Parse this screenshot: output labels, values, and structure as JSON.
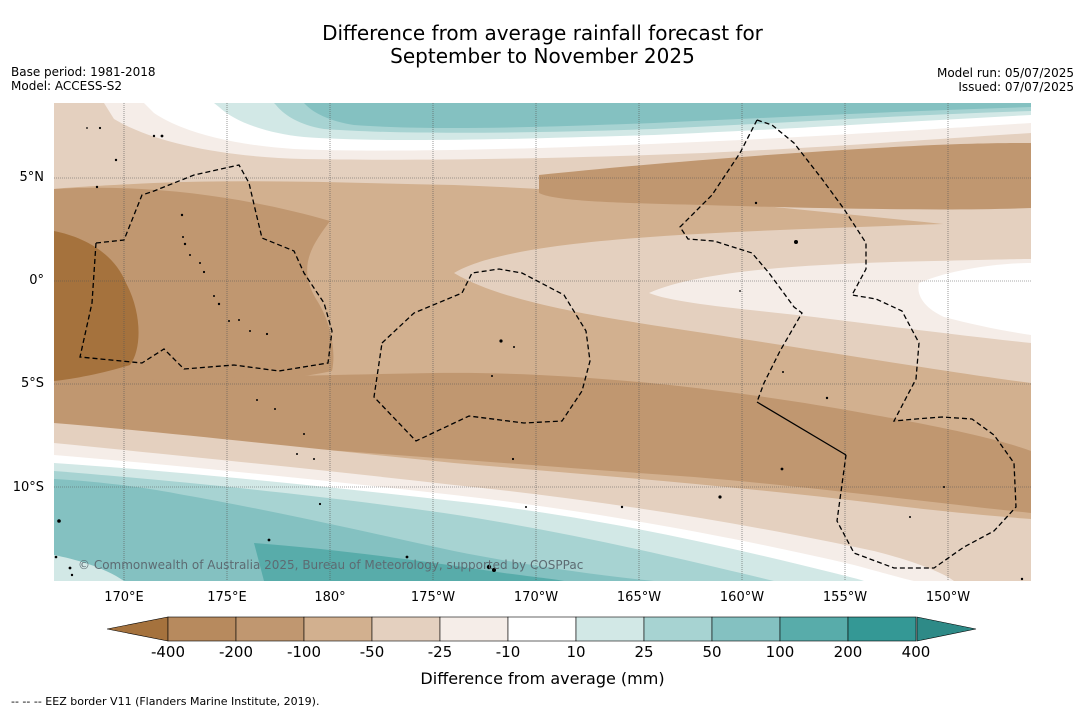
{
  "title_line1": "Difference from average rainfall forecast for",
  "title_line2": "September to November 2025",
  "base_period": "Base period: 1981-2018",
  "model": "Model: ACCESS-S2",
  "model_run": "Model run: 05/07/2025",
  "issued": "Issued: 07/07/2025",
  "lat_labels": [
    "5°N",
    "0°",
    "5°S",
    "10°S"
  ],
  "lon_labels": [
    "170°E",
    "175°E",
    "180°",
    "175°W",
    "170°W",
    "165°W",
    "160°W",
    "155°W",
    "150°W"
  ],
  "copyright": "© Commonwealth of Australia 2025, Bureau of Meteorology, supported by COSPPac",
  "colorbar": {
    "ticks": [
      "-400",
      "-200",
      "-100",
      "-50",
      "-25",
      "-10",
      "10",
      "25",
      "50",
      "100",
      "200",
      "400"
    ],
    "colors": [
      "#a5723d",
      "#b78a5e",
      "#c09770",
      "#d2b08f",
      "#e4d0bf",
      "#f5ede8",
      "#ffffff",
      "#d2e8e6",
      "#a7d3d2",
      "#84c1c1",
      "#58acaa",
      "#349895",
      "#2e8a87"
    ],
    "label": "Difference from average (mm)"
  },
  "footnote": "--  --  -- EEZ border V11 (Flanders Marine Institute, 2019)."
}
